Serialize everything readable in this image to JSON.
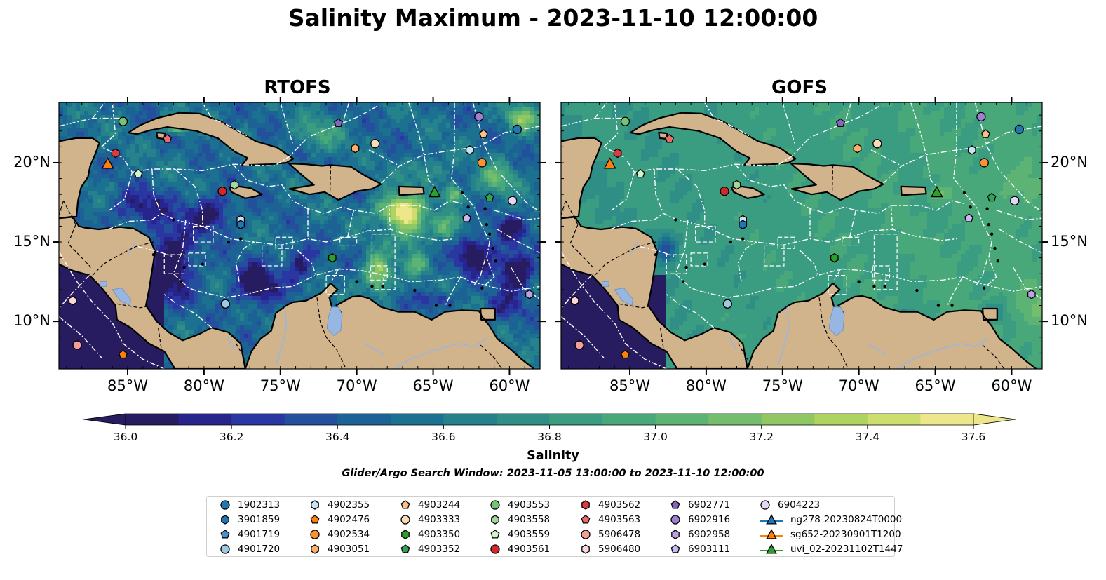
{
  "title": "Salinity Maximum - 2023-11-10 12:00:00",
  "panels": [
    {
      "name": "RTOFS",
      "mode": "rtofs"
    },
    {
      "name": "GOFS",
      "mode": "gofs"
    }
  ],
  "map": {
    "lon_range": [
      -89.5,
      -58.0
    ],
    "lat_range": [
      7.0,
      23.8
    ],
    "x_ticks": [
      {
        "lon": -85,
        "label": "85°W"
      },
      {
        "lon": -80,
        "label": "80°W"
      },
      {
        "lon": -75,
        "label": "75°W"
      },
      {
        "lon": -70,
        "label": "70°W"
      },
      {
        "lon": -65,
        "label": "65°W"
      },
      {
        "lon": -60,
        "label": "60°W"
      }
    ],
    "y_ticks": [
      {
        "lat": 20,
        "label": "20°N"
      },
      {
        "lat": 15,
        "label": "15°N"
      },
      {
        "lat": 10,
        "label": "10°N"
      }
    ],
    "land_color": "#d2b48c",
    "lake_color": "#97b6e1",
    "boundary_color": "#ffffff"
  },
  "colorbar": {
    "label": "Salinity",
    "min": 36.0,
    "max": 37.6,
    "step": 0.1,
    "extend": "both",
    "ticks": [
      {
        "value": 36.0,
        "label": "36.0"
      },
      {
        "value": 36.2,
        "label": "36.2"
      },
      {
        "value": 36.4,
        "label": "36.4"
      },
      {
        "value": 36.6,
        "label": "36.6"
      },
      {
        "value": 36.8,
        "label": "36.8"
      },
      {
        "value": 37.0,
        "label": "37.0"
      },
      {
        "value": 37.2,
        "label": "37.2"
      },
      {
        "value": 37.4,
        "label": "37.4"
      },
      {
        "value": 37.6,
        "label": "37.6"
      }
    ],
    "colors": [
      "#271c5f",
      "#28248e",
      "#2a36a1",
      "#234f9c",
      "#1d6295",
      "#1d7190",
      "#25818b",
      "#2f8f86",
      "#3a9c80",
      "#49a87a",
      "#5cb374",
      "#74bd6c",
      "#90c763",
      "#aed35e",
      "#cddd6e",
      "#eee68b"
    ]
  },
  "search_window": "Glider/Argo Search Window: 2023-11-05 13:00:00 to 2023-11-10 12:00:00",
  "legend": [
    {
      "label": "1902313",
      "marker": "circle",
      "color": "#1f77b4"
    },
    {
      "label": "3901859",
      "marker": "hexagon",
      "color": "#1f77b4"
    },
    {
      "label": "4901719",
      "marker": "pentagon",
      "color": "#4a90c9"
    },
    {
      "label": "4901720",
      "marker": "circle",
      "color": "#9ecae1"
    },
    {
      "label": "4902355",
      "marker": "hexagon",
      "color": "#c6e4f5"
    },
    {
      "label": "4902476",
      "marker": "pentagon",
      "color": "#ff7f0e"
    },
    {
      "label": "4902534",
      "marker": "circle",
      "color": "#fd9330"
    },
    {
      "label": "4903051",
      "marker": "hexagon",
      "color": "#fdae6b"
    },
    {
      "label": "4903244",
      "marker": "pentagon",
      "color": "#fdc087"
    },
    {
      "label": "4903333",
      "marker": "circle",
      "color": "#fdd9b5"
    },
    {
      "label": "4903350",
      "marker": "hexagon",
      "color": "#2ca02c"
    },
    {
      "label": "4903352",
      "marker": "pentagon",
      "color": "#31a354"
    },
    {
      "label": "4903553",
      "marker": "circle",
      "color": "#74c476"
    },
    {
      "label": "4903558",
      "marker": "hexagon",
      "color": "#a1d99b"
    },
    {
      "label": "4903559",
      "marker": "pentagon",
      "color": "#d0f5c8"
    },
    {
      "label": "4903561",
      "marker": "circle",
      "color": "#d62728"
    },
    {
      "label": "4903562",
      "marker": "hexagon",
      "color": "#de3b3c"
    },
    {
      "label": "4903563",
      "marker": "pentagon",
      "color": "#ee6a6b"
    },
    {
      "label": "5906478",
      "marker": "circle",
      "color": "#f29e9a"
    },
    {
      "label": "5906480",
      "marker": "hexagon",
      "color": "#fcd7d7"
    },
    {
      "label": "6902771",
      "marker": "pentagon",
      "color": "#8467bd"
    },
    {
      "label": "6902916",
      "marker": "circle",
      "color": "#9e7fd0"
    },
    {
      "label": "6902958",
      "marker": "hexagon",
      "color": "#b9a1e3"
    },
    {
      "label": "6903111",
      "marker": "pentagon",
      "color": "#cab9ef"
    },
    {
      "label": "6904223",
      "marker": "circle",
      "color": "#e4d6f7"
    },
    {
      "label": "ng278-20230824T0000",
      "marker": "triangle",
      "color": "#1f77b4"
    },
    {
      "label": "sg652-20230901T1200",
      "marker": "triangle",
      "color": "#ff7f0e"
    },
    {
      "label": "uvi_02-20231102T1447",
      "marker": "triangle",
      "color": "#2ca02c"
    }
  ],
  "observations": [
    {
      "id": "4903553",
      "lon": -85.3,
      "lat": 22.6
    },
    {
      "id": "4903563",
      "lon": -82.4,
      "lat": 21.5
    },
    {
      "id": "4903562",
      "lon": -85.8,
      "lat": 20.6
    },
    {
      "id": "sg652-20230901T1200",
      "lon": -86.3,
      "lat": 19.9
    },
    {
      "id": "4903559",
      "lon": -84.3,
      "lat": 19.3
    },
    {
      "id": "4903561",
      "lon": -78.8,
      "lat": 18.2
    },
    {
      "id": "4903558",
      "lon": -78.0,
      "lat": 18.6
    },
    {
      "id": "4902355",
      "lon": -77.6,
      "lat": 16.4
    },
    {
      "id": "3901859",
      "lon": -77.6,
      "lat": 16.1
    },
    {
      "id": "4901720",
      "lon": -78.6,
      "lat": 11.1
    },
    {
      "id": "6902771",
      "lon": -71.2,
      "lat": 22.5
    },
    {
      "id": "4903051",
      "lon": -70.1,
      "lat": 20.9
    },
    {
      "id": "4903333",
      "lon": -68.8,
      "lat": 21.2
    },
    {
      "id": "uvi_02-20231102T1447",
      "lon": -64.9,
      "lat": 18.1
    },
    {
      "id": "4903350",
      "lon": -71.6,
      "lat": 14.0
    },
    {
      "id": "6902916",
      "lon": -62.0,
      "lat": 22.9
    },
    {
      "id": "4903244",
      "lon": -61.7,
      "lat": 21.8
    },
    {
      "id": "4902355",
      "lon": -62.6,
      "lat": 20.8
    },
    {
      "id": "4902534",
      "lon": -61.8,
      "lat": 20.0
    },
    {
      "id": "1902313",
      "lon": -59.5,
      "lat": 22.1
    },
    {
      "id": "4903352",
      "lon": -61.3,
      "lat": 17.8
    },
    {
      "id": "6904223",
      "lon": -59.8,
      "lat": 17.6
    },
    {
      "id": "6903111",
      "lon": -62.8,
      "lat": 16.5
    },
    {
      "id": "6902958",
      "lon": -58.7,
      "lat": 11.7
    },
    {
      "id": "5906480",
      "lon": -88.6,
      "lat": 11.3
    },
    {
      "id": "5906478",
      "lon": -88.3,
      "lat": 8.5
    },
    {
      "id": "4902476",
      "lon": -85.3,
      "lat": 7.9
    }
  ]
}
